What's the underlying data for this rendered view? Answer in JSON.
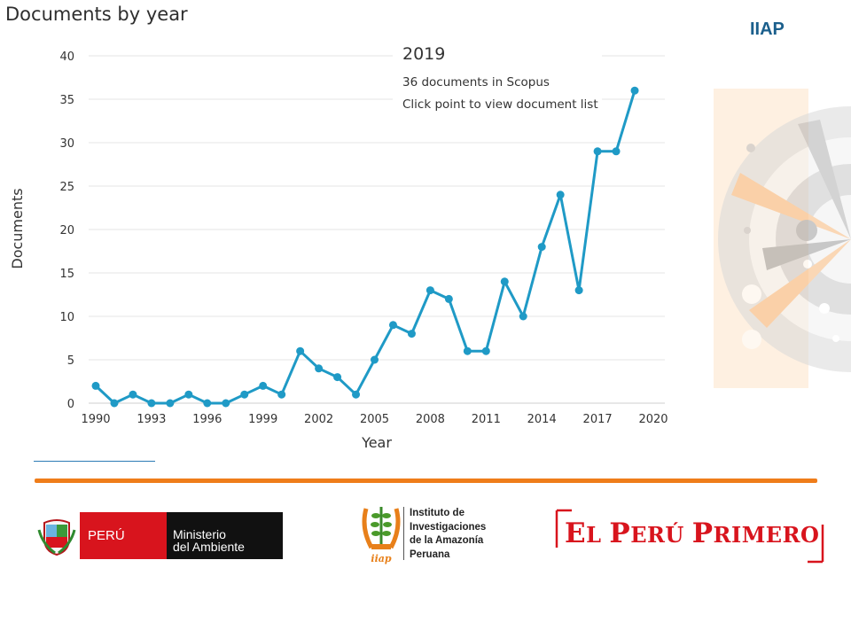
{
  "header": {
    "title": "Documents by year",
    "brand": "IIAP"
  },
  "tooltip": {
    "year": "2019",
    "line1": "36 documents in Scopus",
    "line2": "Click point to view document list"
  },
  "chart_data": {
    "type": "line",
    "title": "Documents by year",
    "xlabel": "Year",
    "ylabel": "Documents",
    "xlim": [
      1990,
      2020
    ],
    "ylim": [
      0,
      40
    ],
    "xticks": [
      1990,
      1993,
      1996,
      1999,
      2002,
      2005,
      2008,
      2011,
      2014,
      2017,
      2020
    ],
    "yticks": [
      0,
      5,
      10,
      15,
      20,
      25,
      30,
      35,
      40
    ],
    "grid": true,
    "color": "#1f9ac6",
    "x": [
      1990,
      1991,
      1992,
      1993,
      1994,
      1995,
      1996,
      1997,
      1998,
      1999,
      2000,
      2001,
      2002,
      2003,
      2004,
      2005,
      2006,
      2007,
      2008,
      2009,
      2010,
      2011,
      2012,
      2013,
      2014,
      2015,
      2016,
      2017,
      2018,
      2019
    ],
    "values": [
      2,
      0,
      1,
      0,
      0,
      1,
      0,
      0,
      1,
      2,
      1,
      6,
      4,
      3,
      1,
      5,
      9,
      8,
      13,
      12,
      6,
      6,
      14,
      10,
      18,
      24,
      13,
      29,
      29,
      36
    ]
  },
  "footer": {
    "minam": {
      "peru": "PERÚ",
      "line1": "Ministerio",
      "line2": "del Ambiente"
    },
    "iiap": {
      "line1": "Instituto de",
      "line2": "Investigaciones",
      "line3": "de la Amazonía",
      "line4": "Peruana",
      "mark": "iiap"
    },
    "slogan": {
      "p1": "E",
      "p2": "L ",
      "p3": "P",
      "p4": "ERÚ ",
      "p5": "P",
      "p6": "RIMERO"
    }
  }
}
